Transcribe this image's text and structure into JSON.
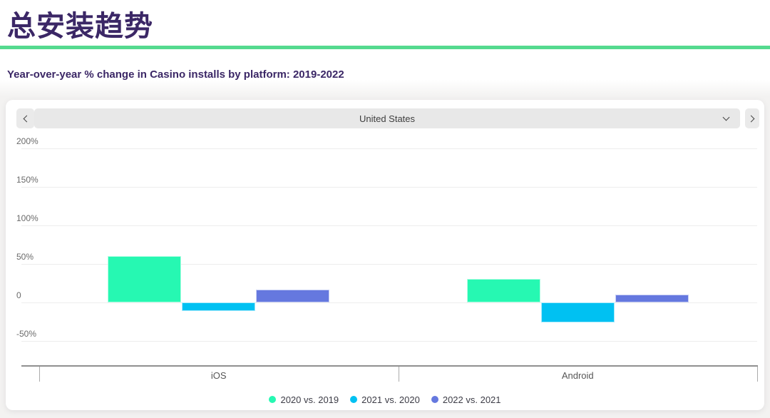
{
  "header": {
    "title": "总安装趋势",
    "subtitle": "Year-over-year % change in Casino installs by platform: 2019-2022"
  },
  "selector": {
    "value": "United States",
    "prev_icon": "chevron-left",
    "next_icon": "chevron-right",
    "dropdown_icon": "chevron-down"
  },
  "chart_data": {
    "type": "bar",
    "title": "Year-over-year % change in Casino installs by platform: 2019-2022",
    "categories": [
      "iOS",
      "Android"
    ],
    "series": [
      {
        "name": "2020 vs. 2019",
        "color": "#26F8B2",
        "values": [
          60,
          31
        ]
      },
      {
        "name": "2021 vs. 2020",
        "color": "#00C1F2",
        "values": [
          -11,
          -26
        ]
      },
      {
        "name": "2022 vs. 2021",
        "color": "#6578DF",
        "values": [
          17,
          10
        ]
      }
    ],
    "ylim": [
      -50,
      200
    ],
    "yticks": [
      {
        "value": 200,
        "label": "200%"
      },
      {
        "value": 150,
        "label": "150%"
      },
      {
        "value": 100,
        "label": "100%"
      },
      {
        "value": 50,
        "label": "50%"
      },
      {
        "value": 0,
        "label": "0"
      },
      {
        "value": -50,
        "label": "-50%"
      }
    ],
    "grid": true,
    "legend_position": "bottom"
  },
  "colors": {
    "title_text": "#3B2766",
    "divider_green": "#55DA8F",
    "series_green": "#26F8B2",
    "series_cyan": "#00C1F2",
    "series_purple": "#6578DF",
    "gridline": "#EDEDED",
    "axis_line": "#909090",
    "selector_bg": "#E8E8E8",
    "card_bg": "#FFFFFF",
    "page_bg": "#F3F2F1"
  }
}
